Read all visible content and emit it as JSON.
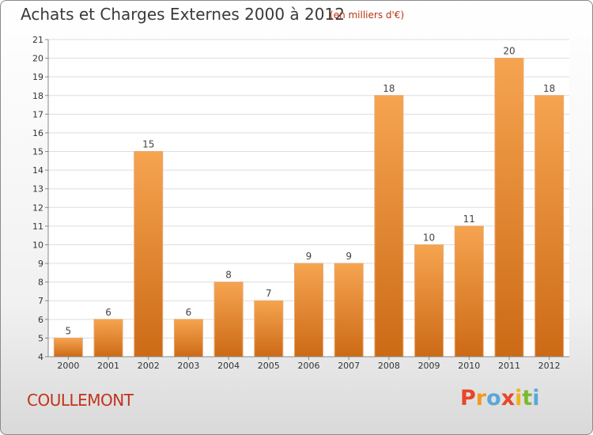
{
  "chart_data": {
    "type": "bar",
    "title": "Achats et Charges Externes 2000 à 2012",
    "subtitle": "(en milliers d'€)",
    "categories": [
      "2000",
      "2001",
      "2002",
      "2003",
      "2004",
      "2005",
      "2006",
      "2007",
      "2008",
      "2009",
      "2010",
      "2011",
      "2012"
    ],
    "values": [
      5,
      6,
      15,
      6,
      8,
      7,
      9,
      9,
      18,
      10,
      11,
      20,
      18
    ],
    "ylim": [
      4,
      21
    ],
    "yticks": [
      4,
      5,
      6,
      7,
      8,
      9,
      10,
      11,
      12,
      13,
      14,
      15,
      16,
      17,
      18,
      19,
      20,
      21
    ],
    "grid": true,
    "bar_color_top": "#f6a450",
    "bar_color_bottom": "#cc6a16"
  },
  "footer": {
    "commune": "COULLEMONT",
    "logo_letters": [
      "P",
      "r",
      "o",
      "x",
      "i",
      "t",
      "i"
    ],
    "logo_colors": [
      "#e6462a",
      "#f29a1b",
      "#5aa7d8",
      "#e6462a",
      "#f2b21b",
      "#7cb932",
      "#5aa7d8"
    ]
  },
  "text_color": "#c2331a"
}
